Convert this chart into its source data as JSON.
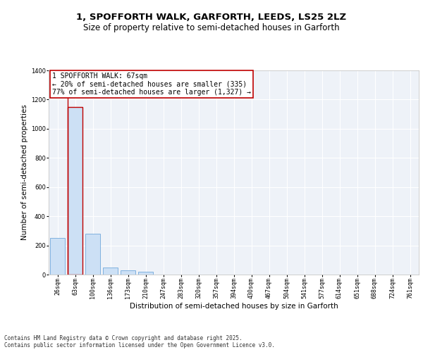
{
  "title_line1": "1, SPOFFORTH WALK, GARFORTH, LEEDS, LS25 2LZ",
  "title_line2": "Size of property relative to semi-detached houses in Garforth",
  "xlabel": "Distribution of semi-detached houses by size in Garforth",
  "ylabel": "Number of semi-detached properties",
  "categories": [
    "26sqm",
    "63sqm",
    "100sqm",
    "136sqm",
    "173sqm",
    "210sqm",
    "247sqm",
    "283sqm",
    "320sqm",
    "357sqm",
    "394sqm",
    "430sqm",
    "467sqm",
    "504sqm",
    "541sqm",
    "577sqm",
    "614sqm",
    "651sqm",
    "688sqm",
    "724sqm",
    "761sqm"
  ],
  "values": [
    250,
    1150,
    280,
    50,
    30,
    20,
    0,
    0,
    0,
    0,
    0,
    0,
    0,
    0,
    0,
    0,
    0,
    0,
    0,
    0,
    0
  ],
  "bar_color": "#cce0f5",
  "bar_edge_color": "#5B9BD5",
  "highlight_bar_index": 1,
  "highlight_edge_color": "#c00000",
  "vline_color": "#c00000",
  "annotation_text": "1 SPOFFORTH WALK: 67sqm\n← 20% of semi-detached houses are smaller (335)\n77% of semi-detached houses are larger (1,327) →",
  "annotation_box_color": "#c00000",
  "ylim": [
    0,
    1400
  ],
  "yticks": [
    0,
    200,
    400,
    600,
    800,
    1000,
    1200,
    1400
  ],
  "background_color": "#eef2f8",
  "grid_color": "#ffffff",
  "footer_text": "Contains HM Land Registry data © Crown copyright and database right 2025.\nContains public sector information licensed under the Open Government Licence v3.0.",
  "title_fontsize": 9.5,
  "subtitle_fontsize": 8.5,
  "axis_label_fontsize": 7.5,
  "tick_fontsize": 6,
  "annotation_fontsize": 7,
  "footer_fontsize": 5.5
}
